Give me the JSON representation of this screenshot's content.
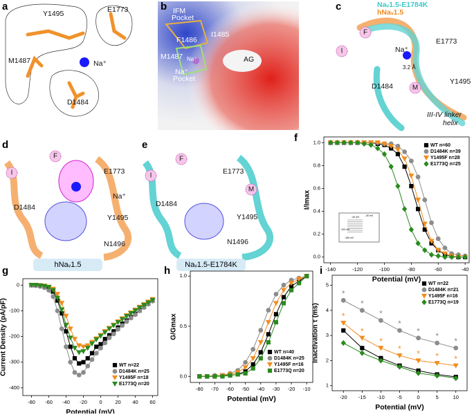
{
  "panels": [
    {
      "letter": "a",
      "labels": [
        "Y1495",
        "E1773",
        "M1487",
        "Na⁺",
        "D1484"
      ]
    },
    {
      "letter": "b",
      "labels": [
        "IFM",
        "Pocket",
        "I1485",
        "F1486",
        "M1487",
        "Na⁺",
        "Na⁺",
        "Pocket",
        "AG"
      ]
    },
    {
      "letter": "c",
      "labels": [
        "Naᵥ1.5-E1784K",
        "hNaᵥ1.5",
        "F",
        "I",
        "Na⁺",
        "E1773",
        "3.2 Å",
        "D1484",
        "M",
        "Y1495",
        "III-IV linker",
        "helix"
      ]
    },
    {
      "letter": "d",
      "labels": [
        "F",
        "I",
        "E1773",
        "D1484",
        "Na⁺",
        "Y1495",
        "N1496"
      ],
      "caption": "hNaᵥ1.5"
    },
    {
      "letter": "e",
      "labels": [
        "F",
        "I",
        "E1773",
        "D1484",
        "M",
        "Y1495",
        "N1496"
      ],
      "caption": "Naᵥ1.5-E1784K"
    }
  ],
  "chart_data": [
    {
      "type": "line",
      "panel_label": "f",
      "x_label": "Potential (mV)",
      "y_label": "I/Imax",
      "x": [
        -140,
        -135,
        -130,
        -125,
        -120,
        -115,
        -110,
        -105,
        -100,
        -95,
        -90,
        -85,
        -80,
        -75,
        -70,
        -65,
        -60,
        -55,
        -50,
        -45,
        -40
      ],
      "xlim": [
        -145,
        -37
      ],
      "xticks": [
        -140,
        -120,
        -100,
        -80,
        -60,
        -40
      ],
      "ylim": [
        -0.05,
        1.05
      ],
      "yticks": [
        {
          "value": 0,
          "label": "0.0"
        },
        0.2,
        0.4,
        0.6,
        0.8,
        {
          "value": 1,
          "label": "1.0"
        }
      ],
      "legend": "upper right",
      "inset_labels": [
        "-40 mV",
        "-30 mV",
        "-120 mV",
        "-160 mV"
      ],
      "series": [
        {
          "name": "WT n=60",
          "color": "#000000",
          "marker": "square",
          "values": [
            1,
            1,
            1,
            1,
            1,
            1,
            1,
            0.99,
            0.98,
            0.95,
            0.9,
            0.79,
            0.62,
            0.42,
            0.24,
            0.12,
            0.06,
            0.02,
            0.01,
            0,
            0
          ]
        },
        {
          "name": "D1484K n=39",
          "color": "#8c8c8c",
          "marker": "circle",
          "values": [
            1,
            1,
            1,
            1,
            1,
            1,
            1,
            1,
            0.99,
            0.99,
            0.97,
            0.92,
            0.84,
            0.7,
            0.5,
            0.3,
            0.16,
            0.08,
            0.03,
            0.02,
            0.01
          ]
        },
        {
          "name": "Y1495F n=28",
          "color": "#f28c1e",
          "marker": "triangle-down",
          "values": [
            1,
            1,
            1,
            1,
            1,
            1,
            1,
            1,
            0.99,
            0.97,
            0.94,
            0.86,
            0.71,
            0.5,
            0.29,
            0.14,
            0.06,
            0.03,
            0.01,
            0,
            0
          ]
        },
        {
          "name": "E1773Q n=25",
          "color": "#2a8a1e",
          "marker": "diamond",
          "values": [
            1,
            1,
            1,
            1,
            1,
            0.99,
            0.98,
            0.95,
            0.9,
            0.79,
            0.62,
            0.42,
            0.24,
            0.12,
            0.06,
            0.02,
            0.01,
            0,
            0,
            0,
            0
          ]
        }
      ]
    },
    {
      "type": "line",
      "panel_label": "g",
      "x_label": "Potential (mV)",
      "y_label": "Current Density (pA/pF)",
      "x": [
        -80,
        -75,
        -70,
        -65,
        -60,
        -55,
        -50,
        -45,
        -40,
        -35,
        -30,
        -25,
        -20,
        -15,
        -10,
        -5,
        0,
        5,
        10,
        15,
        20,
        25,
        30,
        35,
        40,
        45,
        50,
        55,
        60
      ],
      "xlim": [
        -90,
        66
      ],
      "xticks": [
        -80,
        -60,
        -40,
        -20,
        0,
        20,
        40,
        60
      ],
      "ylim": [
        -430,
        25
      ],
      "yticks": [
        -400,
        -300,
        -200,
        -100,
        0
      ],
      "legend": "lower right",
      "series": [
        {
          "name": "WT n=22",
          "color": "#000000",
          "marker": "square",
          "values": [
            0,
            0,
            -2,
            -5,
            -10,
            -25,
            -60,
            -110,
            -180,
            -240,
            -285,
            -305,
            -300,
            -285,
            -265,
            -240,
            -230,
            -210,
            -195,
            -180,
            -165,
            -150,
            -138,
            -125,
            -112,
            -98,
            -85,
            -72,
            -60
          ]
        },
        {
          "name": "D1484K n=25",
          "color": "#8c8c8c",
          "marker": "circle",
          "values": [
            0,
            -2,
            -5,
            -10,
            -20,
            -45,
            -100,
            -170,
            -240,
            -300,
            -340,
            -350,
            -340,
            -315,
            -290,
            -265,
            -245,
            -225,
            -205,
            -190,
            -172,
            -157,
            -142,
            -128,
            -115,
            -100,
            -87,
            -74,
            -62
          ]
        },
        {
          "name": "Y1495F n=18",
          "color": "#f28c1e",
          "marker": "triangle-down",
          "values": [
            0,
            0,
            -1,
            -3,
            -7,
            -15,
            -35,
            -70,
            -120,
            -170,
            -210,
            -235,
            -240,
            -235,
            -222,
            -208,
            -195,
            -180,
            -167,
            -155,
            -142,
            -130,
            -118,
            -107,
            -96,
            -85,
            -75,
            -65,
            -55
          ]
        },
        {
          "name": "E1773Q n=20",
          "color": "#2a8a1e",
          "marker": "triangle-down",
          "values": [
            0,
            0,
            -2,
            -4,
            -8,
            -20,
            -50,
            -95,
            -155,
            -205,
            -245,
            -262,
            -258,
            -245,
            -228,
            -212,
            -198,
            -184,
            -170,
            -157,
            -145,
            -133,
            -121,
            -110,
            -99,
            -88,
            -78,
            -68,
            -58
          ]
        }
      ]
    },
    {
      "type": "line",
      "panel_label": "h",
      "x_label": "Potential (mV)",
      "y_label": "G/Gmax",
      "x": [
        -80,
        -75,
        -70,
        -65,
        -60,
        -55,
        -50,
        -45,
        -40,
        -35,
        -30,
        -25,
        -20,
        -15,
        -10
      ],
      "xlim": [
        -86,
        -6
      ],
      "xticks": [
        -80,
        -70,
        -60,
        -50,
        -40,
        -30,
        -20,
        -10
      ],
      "ylim": [
        -0.06,
        1.05
      ],
      "yticks": [
        {
          "value": 0,
          "label": "0.0"
        },
        0.5,
        {
          "value": 1,
          "label": "1.0"
        }
      ],
      "legend": "lower right",
      "series": [
        {
          "name": "WT n=40",
          "color": "#000000",
          "marker": "square",
          "values": [
            0,
            0,
            0,
            0.01,
            0.01,
            0.02,
            0.05,
            0.12,
            0.24,
            0.42,
            0.62,
            0.79,
            0.9,
            0.95,
            1
          ]
        },
        {
          "name": "D1484K n=25",
          "color": "#8c8c8c",
          "marker": "circle",
          "values": [
            0,
            0,
            0.01,
            0.01,
            0.03,
            0.06,
            0.14,
            0.27,
            0.46,
            0.66,
            0.82,
            0.91,
            0.96,
            0.98,
            1
          ]
        },
        {
          "name": "Y1495F n=16",
          "color": "#f28c1e",
          "marker": "triangle-down",
          "values": [
            0,
            0,
            0,
            0.01,
            0.02,
            0.04,
            0.09,
            0.18,
            0.34,
            0.54,
            0.73,
            0.86,
            0.93,
            0.97,
            1
          ]
        },
        {
          "name": "E1773Q n=20",
          "color": "#2a8a1e",
          "marker": "square",
          "values": [
            0,
            0,
            0,
            0,
            0.01,
            0.02,
            0.03,
            0.08,
            0.18,
            0.34,
            0.54,
            0.73,
            0.86,
            0.93,
            1
          ]
        }
      ]
    },
    {
      "type": "line",
      "panel_label": "i",
      "x_label": "Potential (mV)",
      "y_label": "Inactivation τ (ms)",
      "x": [
        -20,
        -15,
        -10,
        -5,
        0,
        5,
        10
      ],
      "xlim": [
        -23,
        13
      ],
      "xticks": [
        -20,
        -15,
        -10,
        -5,
        0,
        5,
        10
      ],
      "ylim": [
        0.8,
        5.4
      ],
      "yticks": [
        1,
        2,
        3,
        4,
        5
      ],
      "legend": "upper right",
      "series": [
        {
          "name": "WT n=22",
          "color": "#000000",
          "marker": "square",
          "values": [
            3.2,
            2.5,
            2.1,
            1.8,
            1.6,
            1.45,
            1.35
          ]
        },
        {
          "name": "D1484K n=21",
          "color": "#8c8c8c",
          "marker": "circle",
          "values": [
            4.4,
            4.0,
            3.6,
            3.2,
            2.9,
            2.7,
            2.5
          ],
          "significance": "*"
        },
        {
          "name": "Y1495F n=16",
          "color": "#f28c1e",
          "marker": "triangle-down",
          "values": [
            3.5,
            2.9,
            2.5,
            2.2,
            2.0,
            1.9,
            1.8
          ],
          "significance": "*"
        },
        {
          "name": "E1773Q n=19",
          "color": "#2a8a1e",
          "marker": "diamond",
          "values": [
            2.7,
            2.3,
            2.0,
            1.75,
            1.5,
            1.4,
            1.3
          ]
        }
      ]
    }
  ]
}
